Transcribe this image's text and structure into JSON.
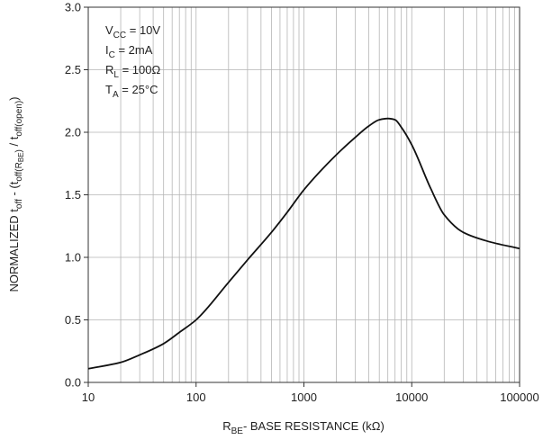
{
  "chart_data": {
    "type": "line",
    "x_scale": "log",
    "xlim": [
      10,
      100000
    ],
    "ylim": [
      0,
      3.0
    ],
    "grid": true,
    "x_ticks": [
      "10",
      "100",
      "1000",
      "10000",
      "100000"
    ],
    "y_ticks": [
      "0.0",
      "0.5",
      "1.0",
      "1.5",
      "2.0",
      "2.5",
      "3.0"
    ],
    "xlabel": {
      "main": "R",
      "sub": "BE",
      "rest": "- BASE RESISTANCE (kΩ)"
    },
    "ylabel": {
      "p1": "NORMALIZED t",
      "s1": "off",
      "p2": " - (t",
      "s2": "off(R",
      "s2b": "BE",
      "s2c": ")",
      "p3": " / t",
      "s3": "off(open)",
      "p4": ")"
    },
    "conditions": [
      {
        "main": "V",
        "sub": "CC",
        "rest": " = 10V"
      },
      {
        "main": "I",
        "sub": "C",
        "rest": " = 2mA"
      },
      {
        "main": "R",
        "sub": "L",
        "rest": " = 100Ω"
      },
      {
        "main": "T",
        "sub": "A",
        "rest": " = 25°C"
      }
    ],
    "series": [
      {
        "x": [
          10,
          20,
          30,
          50,
          70,
          100,
          200,
          300,
          500,
          700,
          1000,
          2000,
          3000,
          4000,
          5000,
          6000,
          7000,
          8000,
          10000,
          15000,
          20000,
          30000,
          50000,
          100000
        ],
        "y": [
          0.11,
          0.16,
          0.22,
          0.31,
          0.4,
          0.5,
          0.8,
          0.98,
          1.2,
          1.36,
          1.54,
          1.82,
          1.96,
          2.05,
          2.1,
          2.11,
          2.1,
          2.04,
          1.9,
          1.55,
          1.34,
          1.2,
          1.13,
          1.07
        ]
      }
    ]
  }
}
